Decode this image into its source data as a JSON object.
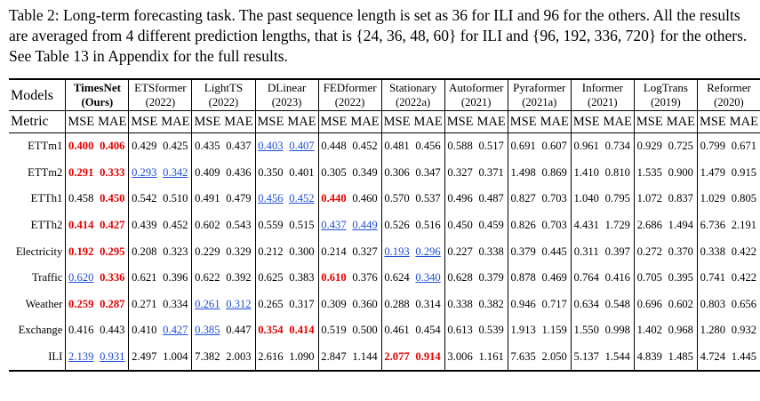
{
  "caption": "Table 2: Long-term forecasting task. The past sequence length is set as 36 for ILI and 96 for the others. All the results are averaged from 4 different prediction lengths, that is {24, 36, 48, 60} for ILI and {96, 192, 336, 720} for the others. See Table 13 in Appendix for the full results.",
  "header": {
    "models_label": "Models",
    "metric_label": "Metric",
    "mse": "MSE",
    "mae": "MAE"
  },
  "models": [
    {
      "name": "TimesNet",
      "year": "(Ours)",
      "bold": true
    },
    {
      "name": "ETSformer",
      "year": "(2022)"
    },
    {
      "name": "LightTS",
      "year": "(2022)"
    },
    {
      "name": "DLinear",
      "year": "(2023)"
    },
    {
      "name": "FEDformer",
      "year": "(2022)"
    },
    {
      "name": "Stationary",
      "year": "(2022a)"
    },
    {
      "name": "Autoformer",
      "year": "(2021)"
    },
    {
      "name": "Pyraformer",
      "year": "(2021a)"
    },
    {
      "name": "Informer",
      "year": "(2021)"
    },
    {
      "name": "LogTrans",
      "year": "(2019)"
    },
    {
      "name": "Reformer",
      "year": "(2020)"
    }
  ],
  "rows": [
    {
      "dataset": "ETTm1",
      "values": [
        "0.400",
        "0.406",
        "0.429",
        "0.425",
        "0.435",
        "0.437",
        "0.403",
        "0.407",
        "0.448",
        "0.452",
        "0.481",
        "0.456",
        "0.588",
        "0.517",
        "0.691",
        "0.607",
        "0.961",
        "0.734",
        "0.929",
        "0.725",
        "0.799",
        "0.671"
      ],
      "best": [
        0,
        1
      ],
      "second": [
        6,
        7
      ]
    },
    {
      "dataset": "ETTm2",
      "values": [
        "0.291",
        "0.333",
        "0.293",
        "0.342",
        "0.409",
        "0.436",
        "0.350",
        "0.401",
        "0.305",
        "0.349",
        "0.306",
        "0.347",
        "0.327",
        "0.371",
        "1.498",
        "0.869",
        "1.410",
        "0.810",
        "1.535",
        "0.900",
        "1.479",
        "0.915"
      ],
      "best": [
        0,
        1
      ],
      "second": [
        2,
        3
      ]
    },
    {
      "dataset": "ETTh1",
      "values": [
        "0.458",
        "0.450",
        "0.542",
        "0.510",
        "0.491",
        "0.479",
        "0.456",
        "0.452",
        "0.440",
        "0.460",
        "0.570",
        "0.537",
        "0.496",
        "0.487",
        "0.827",
        "0.703",
        "1.040",
        "0.795",
        "1.072",
        "0.837",
        "1.029",
        "0.805"
      ],
      "best": [
        1,
        8
      ],
      "second": [
        6,
        7
      ]
    },
    {
      "dataset": "ETTh2",
      "values": [
        "0.414",
        "0.427",
        "0.439",
        "0.452",
        "0.602",
        "0.543",
        "0.559",
        "0.515",
        "0.437",
        "0.449",
        "0.526",
        "0.516",
        "0.450",
        "0.459",
        "0.826",
        "0.703",
        "4.431",
        "1.729",
        "2.686",
        "1.494",
        "6.736",
        "2.191"
      ],
      "best": [
        0,
        1
      ],
      "second": [
        8,
        9
      ]
    },
    {
      "dataset": "Electricity",
      "values": [
        "0.192",
        "0.295",
        "0.208",
        "0.323",
        "0.229",
        "0.329",
        "0.212",
        "0.300",
        "0.214",
        "0.327",
        "0.193",
        "0.296",
        "0.227",
        "0.338",
        "0.379",
        "0.445",
        "0.311",
        "0.397",
        "0.272",
        "0.370",
        "0.338",
        "0.422"
      ],
      "best": [
        0,
        1
      ],
      "second": [
        10,
        11
      ]
    },
    {
      "dataset": "Traffic",
      "values": [
        "0.620",
        "0.336",
        "0.621",
        "0.396",
        "0.622",
        "0.392",
        "0.625",
        "0.383",
        "0.610",
        "0.376",
        "0.624",
        "0.340",
        "0.628",
        "0.379",
        "0.878",
        "0.469",
        "0.764",
        "0.416",
        "0.705",
        "0.395",
        "0.741",
        "0.422"
      ],
      "best": [
        1,
        8
      ],
      "second": [
        0,
        11
      ]
    },
    {
      "dataset": "Weather",
      "values": [
        "0.259",
        "0.287",
        "0.271",
        "0.334",
        "0.261",
        "0.312",
        "0.265",
        "0.317",
        "0.309",
        "0.360",
        "0.288",
        "0.314",
        "0.338",
        "0.382",
        "0.946",
        "0.717",
        "0.634",
        "0.548",
        "0.696",
        "0.602",
        "0.803",
        "0.656"
      ],
      "best": [
        0,
        1
      ],
      "second": [
        4,
        5
      ]
    },
    {
      "dataset": "Exchange",
      "values": [
        "0.416",
        "0.443",
        "0.410",
        "0.427",
        "0.385",
        "0.447",
        "0.354",
        "0.414",
        "0.519",
        "0.500",
        "0.461",
        "0.454",
        "0.613",
        "0.539",
        "1.913",
        "1.159",
        "1.550",
        "0.998",
        "1.402",
        "0.968",
        "1.280",
        "0.932"
      ],
      "best": [
        6,
        7
      ],
      "second": [
        3,
        4
      ]
    },
    {
      "dataset": "ILI",
      "values": [
        "2.139",
        "0.931",
        "2.497",
        "1.004",
        "7.382",
        "2.003",
        "2.616",
        "1.090",
        "2.847",
        "1.144",
        "2.077",
        "0.914",
        "3.006",
        "1.161",
        "7.635",
        "2.050",
        "5.137",
        "1.544",
        "4.839",
        "1.485",
        "4.724",
        "1.445"
      ],
      "best": [
        10,
        11
      ],
      "second": [
        0,
        1
      ]
    }
  ]
}
